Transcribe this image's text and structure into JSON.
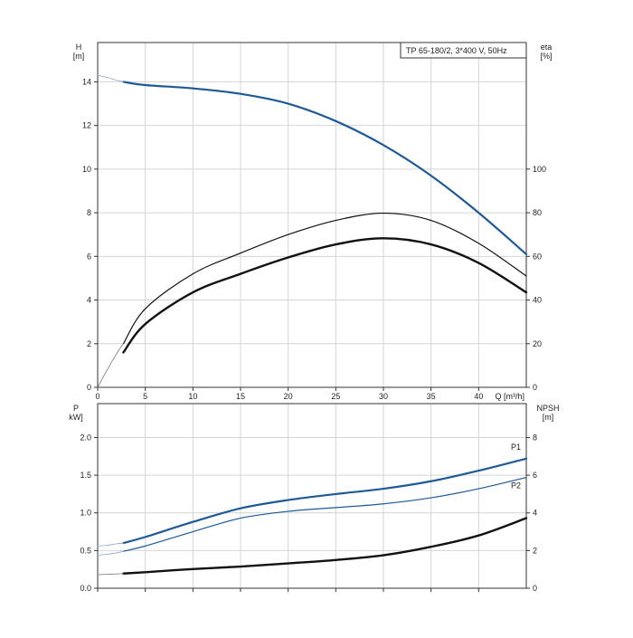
{
  "chart_data": [
    {
      "type": "line",
      "title": "TP 65-180/2, 3*400 V, 50Hz",
      "xlabel": "Q [m³/h]",
      "ylabel_left": [
        "H",
        "[m]"
      ],
      "ylabel_right": [
        "eta",
        "[%]"
      ],
      "xlim": [
        0,
        45
      ],
      "ylim_left": [
        0,
        15.8
      ],
      "ylim_right": [
        0,
        158
      ],
      "x_ticks": [
        0,
        5,
        10,
        15,
        20,
        25,
        30,
        35,
        40
      ],
      "x_tick_labels": [
        "0",
        "5",
        "10",
        "15",
        "20",
        "25",
        "30",
        "35",
        "40"
      ],
      "y_ticks_left": [
        0,
        2,
        4,
        6,
        8,
        10,
        12,
        14
      ],
      "y_tick_labels_left": [
        "0",
        "2",
        "4",
        "6",
        "8",
        "10",
        "12",
        "14"
      ],
      "y_ticks_right": [
        0,
        20,
        40,
        60,
        80,
        100
      ],
      "y_tick_labels_right": [
        "0",
        "20",
        "40",
        "60",
        "80",
        "100"
      ],
      "grid": true,
      "series": [
        {
          "key": "H",
          "axis": "left",
          "color": "#1f5a96",
          "width": 2.2,
          "x": [
            2.7,
            5,
            10,
            15,
            20,
            25,
            30,
            35,
            40,
            45
          ],
          "y": [
            14.0,
            13.85,
            13.7,
            13.45,
            13.0,
            12.2,
            11.1,
            9.7,
            8.0,
            6.1
          ]
        },
        {
          "key": "H-ext",
          "axis": "left",
          "color": "#8aa6c8",
          "width": 0.8,
          "x": [
            0,
            1,
            2,
            2.7
          ],
          "y": [
            14.3,
            14.2,
            14.07,
            14.0
          ]
        },
        {
          "key": "eta-pump",
          "axis": "right",
          "color": "#111111",
          "width": 1.2,
          "x": [
            2.7,
            5,
            10,
            15,
            20,
            25,
            30,
            35,
            40,
            45
          ],
          "y": [
            20.0,
            36.0,
            52.0,
            61.5,
            70.0,
            76.5,
            79.8,
            76.5,
            66.0,
            51.0
          ]
        },
        {
          "key": "eta-pump-ext",
          "axis": "right",
          "color": "#777777",
          "width": 0.8,
          "x": [
            0,
            1,
            2,
            2.7
          ],
          "y": [
            0,
            8.0,
            15.5,
            20.0
          ]
        },
        {
          "key": "eta-total",
          "axis": "right",
          "color": "#111111",
          "width": 2.4,
          "x": [
            2.7,
            5,
            10,
            15,
            20,
            25,
            30,
            35,
            40,
            45
          ],
          "y": [
            16.0,
            29.0,
            43.5,
            52.0,
            59.5,
            65.5,
            68.3,
            65.5,
            57.0,
            43.5
          ]
        }
      ]
    },
    {
      "type": "line",
      "xlabel": "",
      "ylabel_left": [
        "P",
        "kW]"
      ],
      "ylabel_right": [
        "NPSH",
        "[m]"
      ],
      "xlim": [
        0,
        45
      ],
      "ylim_left": [
        0,
        2.45
      ],
      "ylim_right": [
        0,
        9.8
      ],
      "x_ticks": [
        0,
        5,
        10,
        15,
        20,
        25,
        30,
        35,
        40
      ],
      "y_ticks_left": [
        0,
        0.5,
        1.0,
        1.5,
        2.0
      ],
      "y_tick_labels_left": [
        "0.0",
        "0.5",
        "1.0",
        "1.5",
        "2.0"
      ],
      "y_ticks_right": [
        0,
        2,
        4,
        6,
        8
      ],
      "y_tick_labels_right": [
        "0",
        "2",
        "4",
        "6",
        "8"
      ],
      "grid": true,
      "series": [
        {
          "key": "P1",
          "name": "P1",
          "axis": "left",
          "color": "#1f5a96",
          "width": 2.2,
          "x": [
            2.7,
            5,
            10,
            15,
            20,
            25,
            30,
            35,
            40,
            45
          ],
          "y": [
            0.6,
            0.68,
            0.88,
            1.06,
            1.17,
            1.25,
            1.32,
            1.42,
            1.56,
            1.72
          ]
        },
        {
          "key": "P1-ext",
          "axis": "left",
          "color": "#8aa6c8",
          "width": 0.8,
          "x": [
            0,
            1,
            2,
            2.7
          ],
          "y": [
            0.56,
            0.57,
            0.59,
            0.6
          ]
        },
        {
          "key": "P2",
          "name": "P2",
          "axis": "left",
          "color": "#1f5a96",
          "width": 1.2,
          "x": [
            2.7,
            5,
            10,
            15,
            20,
            25,
            30,
            35,
            40,
            45
          ],
          "y": [
            0.49,
            0.56,
            0.75,
            0.93,
            1.02,
            1.07,
            1.12,
            1.2,
            1.32,
            1.47
          ]
        },
        {
          "key": "P2-ext",
          "axis": "left",
          "color": "#8aa6c8",
          "width": 0.8,
          "x": [
            0,
            1,
            2,
            2.7
          ],
          "y": [
            0.44,
            0.45,
            0.47,
            0.49
          ]
        },
        {
          "key": "NPSH",
          "axis": "right",
          "color": "#111111",
          "width": 2.4,
          "x": [
            2.7,
            5,
            10,
            15,
            20,
            25,
            30,
            35,
            40,
            45
          ],
          "y": [
            0.78,
            0.85,
            1.02,
            1.15,
            1.32,
            1.5,
            1.75,
            2.2,
            2.8,
            3.72
          ]
        },
        {
          "key": "NPSH-ext",
          "axis": "right",
          "color": "#777777",
          "width": 0.8,
          "x": [
            0,
            1,
            2,
            2.7
          ],
          "y": [
            0.72,
            0.74,
            0.76,
            0.78
          ]
        }
      ]
    }
  ]
}
